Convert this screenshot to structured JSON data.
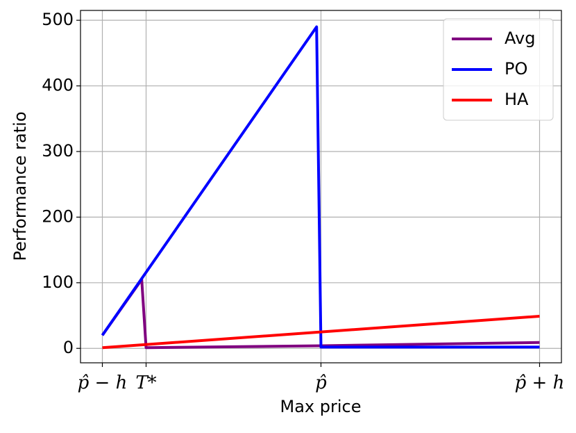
{
  "chart_data": {
    "type": "line",
    "xlabel": "Max price",
    "ylabel": "Performance ratio",
    "xlim": [
      -1.1,
      1.1
    ],
    "ylim": [
      -22,
      515
    ],
    "xticks": [
      {
        "value": -1,
        "label": "p̂ − h"
      },
      {
        "value": -0.8,
        "label": "T*"
      },
      {
        "value": 0,
        "label": "p̂"
      },
      {
        "value": 1,
        "label": "p̂ + h"
      }
    ],
    "yticks": [
      0,
      100,
      200,
      300,
      400,
      500
    ],
    "grid": true,
    "legend": "upper right",
    "series": [
      {
        "name": "Avg",
        "color": "#800080",
        "x": [
          -1,
          -0.82,
          -0.8,
          0,
          1
        ],
        "values": [
          20,
          105,
          1,
          4,
          9
        ]
      },
      {
        "name": "PO",
        "color": "#0000ff",
        "x": [
          -1,
          -0.02,
          0,
          1
        ],
        "values": [
          20,
          490,
          2,
          2
        ]
      },
      {
        "name": "HA",
        "color": "#ff0000",
        "x": [
          -1,
          1
        ],
        "values": [
          1,
          49
        ]
      }
    ]
  }
}
